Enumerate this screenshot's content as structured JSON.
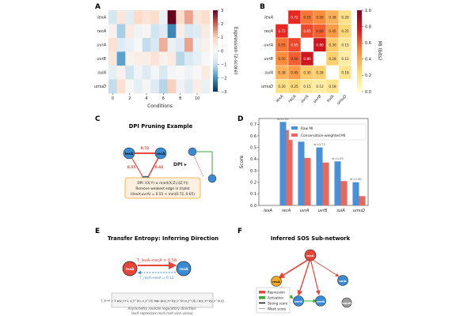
{
  "panels": {
    "A": {
      "letter": "A"
    },
    "B": {
      "letter": "B"
    },
    "C": {
      "letter": "C",
      "title": "DPI Pruning Example"
    },
    "D": {
      "letter": "D"
    },
    "E": {
      "letter": "E",
      "title": "Transfer Entropy: Inferring Direction"
    },
    "F": {
      "letter": "F",
      "title": "Inferred SOS Sub-network"
    }
  },
  "genes": [
    "lexA",
    "recA",
    "uvrA",
    "uvrB",
    "sulA",
    "umuD"
  ],
  "colors": {
    "red": "#e8443a",
    "blue": "#3a8bd6",
    "orange": "#f5a623",
    "grey": "#9e9e9e",
    "green": "#3aaa35",
    "raw_mi": "#4a90d9",
    "cons_mi": "#e8685e"
  },
  "chart_data": [
    {
      "panel": "A",
      "type": "heatmap",
      "rows": [
        "lexA",
        "recA",
        "uvrA",
        "uvrB",
        "sulA",
        "umuD"
      ],
      "xlabel": "Conditions",
      "xticks": [
        "0",
        "2",
        "4",
        "6",
        "8",
        "10"
      ],
      "values": [
        [
          -0.8,
          0.5,
          -0.5,
          0.9,
          0.6,
          0.8,
          -0.3,
          3.0,
          0.8,
          1.4,
          0.5,
          0.8
        ],
        [
          0.2,
          -1.2,
          0.4,
          -0.2,
          0.1,
          -0.9,
          -0.6,
          -2.1,
          0.3,
          -0.7,
          -0.6,
          0.4
        ],
        [
          0.7,
          -0.6,
          -0.3,
          0.0,
          -1.0,
          -0.7,
          1.3,
          -0.3,
          -0.6,
          1.4,
          -0.3,
          0.2
        ],
        [
          0.5,
          -1.8,
          0.2,
          0.3,
          0.3,
          0.6,
          0.2,
          0.4,
          -1.1,
          -0.7,
          -0.4,
          0.0
        ],
        [
          -0.4,
          0.2,
          -0.9,
          -0.2,
          -0.6,
          -0.1,
          -0.7,
          -0.1,
          0.0,
          -0.2,
          0.0,
          0.4
        ],
        [
          -1.0,
          0.7,
          0.0,
          -0.4,
          -0.1,
          -0.6,
          -1.1,
          1.0,
          -0.2,
          -0.6,
          0.3,
          -0.3
        ]
      ],
      "colorbar_label": "Expression (z-score)",
      "colorbar_ticks": [
        "3",
        "2",
        "1",
        "0",
        "−1",
        "−2",
        "−3"
      ],
      "range": [
        -3,
        3
      ]
    },
    {
      "panel": "B",
      "type": "heatmap",
      "rows": [
        "lexA",
        "recA",
        "uvrA",
        "uvrB",
        "sulA",
        "umuD"
      ],
      "cols": [
        "lexA",
        "recA",
        "uvrA",
        "uvrB",
        "sulA",
        "umuD"
      ],
      "values": [
        [
          null,
          0.72,
          0.55,
          0.5,
          0.38,
          0.2
        ],
        [
          0.72,
          null,
          0.65,
          0.6,
          0.45,
          0.25
        ],
        [
          0.55,
          0.65,
          null,
          0.8,
          0.3,
          0.15
        ],
        [
          0.5,
          0.6,
          0.8,
          null,
          0.28,
          0.12
        ],
        [
          0.38,
          0.45,
          0.3,
          0.28,
          null,
          0.18
        ],
        [
          0.2,
          0.25,
          0.15,
          0.12,
          0.18,
          null
        ]
      ],
      "labels": [
        [
          "",
          "0.72",
          "0.55",
          "0.50",
          "0.38",
          "0.20"
        ],
        [
          "0.72",
          "",
          "0.65",
          "0.60",
          "0.45",
          "0.25"
        ],
        [
          "0.55",
          "0.65",
          "",
          "0.80",
          "0.30",
          "0.15"
        ],
        [
          "0.50",
          "0.60",
          "0.80",
          "",
          "0.28",
          "0.12"
        ],
        [
          "0.38",
          "0.45",
          "0.30",
          "0.28",
          "",
          "0.18"
        ],
        [
          "0.20",
          "0.25",
          "0.15",
          "0.12",
          "0.18",
          ""
        ]
      ],
      "colorbar_label": "MI (bits)",
      "colorbar_ticks": [
        "1.0",
        "0.8",
        "0.6",
        "0.4",
        "0.2",
        "0.0"
      ],
      "range": [
        0,
        1
      ]
    },
    {
      "panel": "D",
      "type": "bar",
      "categories": [
        "lexA",
        "recA",
        "uvrA",
        "uvrB",
        "sulA",
        "umuD"
      ],
      "series": [
        {
          "name": "Raw MI",
          "values": [
            0.0,
            0.72,
            0.55,
            0.5,
            0.38,
            0.2
          ]
        },
        {
          "name": "Conservation-weighted MI",
          "values": [
            0.0,
            0.65,
            0.41,
            0.37,
            0.21,
            0.08
          ]
        }
      ],
      "annotations": [
        {
          "category": "recA",
          "text": "w=0.91"
        },
        {
          "category": "uvrA",
          "text": "w=0.74"
        },
        {
          "category": "uvrB",
          "text": "w=0.73"
        },
        {
          "category": "sulA",
          "text": "w=0.55"
        },
        {
          "category": "umuD",
          "text": "w=0.40"
        }
      ],
      "ylabel": "Score",
      "ylim": [
        0,
        0.75
      ],
      "yticks": [
        "0.0",
        "0.1",
        "0.2",
        "0.3",
        "0.4",
        "0.5",
        "0.6",
        "0.7"
      ],
      "legend": "top-right"
    }
  ],
  "dpi": {
    "n_lexA": "lexA",
    "n_recA": "recA",
    "n_uvrA": "uvrA",
    "e_lexA_recA": "0.72",
    "e_lexA_uvrA": "0.55",
    "e_recA_uvrA": "0.65",
    "arrow_label": "DPI ▸",
    "box_line1": "DPI: I(X;Y) ≤ min(I(X;Z),I(Z;Y))",
    "box_line2": "Remove weakest edge in triplet",
    "box_line3": "I(lexA;uvrA) = 0.55 < min(0.72, 0.65)"
  },
  "te": {
    "n_lexA": "lexA",
    "n_recA": "recA",
    "forward": "T_lexA→recA = 0.58",
    "backward": "T_recA→lexA = 0.12",
    "formula": "T_X→Y = Σ p(y_t+1, y_t^(k), x_t^(l)) log₂ [p(y_t+1|y_t^(k),x_t^(l)) / p(y_t+1|y_t^(k))]",
    "note1": "Asymmetry reveals regulatory direction:",
    "note2": "lexA represses recA (not vice versa)"
  },
  "net": {
    "nodes": [
      "lexA",
      "recA",
      "uvrA",
      "uvrB",
      "sulA",
      "umuD"
    ],
    "legend": [
      "Repression",
      "Activation",
      "Strong score",
      "Weak score"
    ]
  }
}
